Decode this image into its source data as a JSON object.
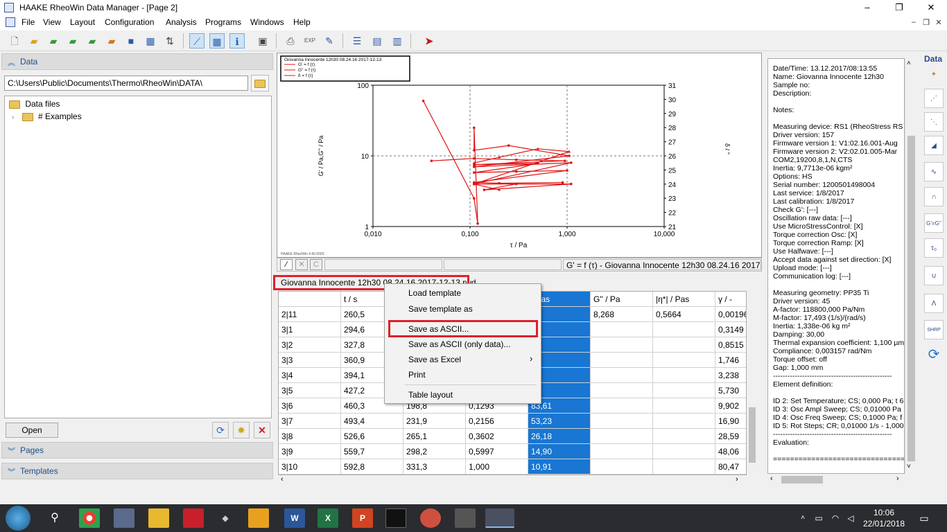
{
  "window": {
    "title": "HAAKE RheoWin Data Manager - [Page 2]",
    "controls": [
      "–",
      "❐",
      "✕"
    ],
    "mdi_controls": [
      "–",
      "❐",
      "✕"
    ]
  },
  "menu": [
    "File",
    "View",
    "Layout",
    "Configuration",
    "Analysis",
    "Programs",
    "Windows",
    "Help"
  ],
  "left": {
    "data_header": "Data",
    "path": "C:\\Users\\Public\\Documents\\Thermo\\RheoWin\\DATA\\",
    "tree": {
      "root": "Data files",
      "child": "# Examples"
    },
    "open_label": "Open",
    "pages_header": "Pages",
    "templates_header": "Templates"
  },
  "plot": {
    "legend": [
      "Giovanna Innocente 12h30 08.24.16 2017-12-13",
      "G' = f (τ)",
      "G'' = f (τ)",
      "δ = f (τ)"
    ],
    "xlabel": "τ / Pa",
    "ylabel": "G' / Pa,G'' / Pa",
    "y2label": "δ / °",
    "y_ticks": [
      "100",
      "10",
      "1"
    ],
    "x_ticks": [
      "0,010",
      "0,100",
      "1,000",
      "10,000"
    ],
    "y2_ticks": [
      "31",
      "30",
      "29",
      "28",
      "27",
      "26",
      "25",
      "24",
      "23",
      "22",
      "21"
    ],
    "footer": "HAAKE RheoWin 4.60.0003",
    "status": "G' = f (τ) - Giovanna Innocente 12h30  08.24.16 2017",
    "status_buttons": [
      "∕",
      "✕",
      "C"
    ]
  },
  "chart_data": {
    "type": "scatter",
    "title": "",
    "xlabel": "τ / Pa",
    "ylabel": "G' / Pa,G'' / Pa",
    "y2label": "δ / °",
    "xscale": "log",
    "yscale": "log",
    "xlim": [
      0.01,
      10
    ],
    "ylim": [
      1,
      100
    ],
    "y2lim": [
      21,
      31
    ],
    "legend_placement": "top-left",
    "series": [
      {
        "name": "G' = f (τ)",
        "axis": "y",
        "points": [
          [
            0.033,
            60
          ],
          [
            0.11,
            2.5
          ],
          [
            0.12,
            1.1
          ],
          [
            0.11,
            25
          ],
          [
            0.11,
            12
          ],
          [
            0.25,
            14
          ],
          [
            1.05,
            10
          ],
          [
            0.11,
            7
          ],
          [
            1.1,
            8
          ],
          [
            0.11,
            4
          ],
          [
            1.1,
            4
          ],
          [
            0.14,
            3.3
          ],
          [
            0.3,
            4
          ]
        ]
      },
      {
        "name": "G'' = f (τ)",
        "axis": "y",
        "points": [
          [
            0.04,
            8.5
          ],
          [
            0.11,
            9.2
          ],
          [
            0.3,
            8.8
          ],
          [
            0.95,
            8.5
          ],
          [
            0.11,
            7.5
          ],
          [
            0.5,
            7.8
          ],
          [
            0.11,
            5.8
          ],
          [
            0.3,
            6
          ],
          [
            1.0,
            6.2
          ],
          [
            0.11,
            4.2
          ],
          [
            0.2,
            4.1
          ],
          [
            0.9,
            4.2
          ]
        ]
      },
      {
        "name": "δ = f (τ)",
        "axis": "y2",
        "points": [
          [
            0.11,
            25.5
          ],
          [
            0.2,
            25.9
          ],
          [
            0.5,
            26.5
          ],
          [
            1.05,
            26.3
          ],
          [
            0.11,
            24.0
          ],
          [
            0.2,
            23.6
          ]
        ]
      }
    ]
  },
  "table": {
    "doc_label": "Giovanna Innocente 12h30  08.24.16 2017-12-13.rwd",
    "columns": [
      "",
      "t / s",
      "",
      "",
      "| Pas",
      "G'' / Pa",
      "|η*| / Pas",
      "γ / -"
    ],
    "rows": [
      [
        "2|11",
        "260,5",
        "",
        "",
        "",
        "8,268",
        "0,5664",
        "0,00196"
      ],
      [
        "3|1",
        "294,6",
        "",
        "",
        "57",
        "",
        "",
        "0,3149"
      ],
      [
        "3|2",
        "327,8",
        "",
        "",
        "20",
        "",
        "",
        "0,8515"
      ],
      [
        "3|3",
        "360,9",
        "",
        "",
        ",9",
        "",
        "",
        "1,746"
      ],
      [
        "3|4",
        "394,1",
        "",
        "",
        ",8",
        "",
        "",
        "3,238"
      ],
      [
        "3|5",
        "427,2",
        "",
        "",
        ",7",
        "",
        "",
        "5,730"
      ],
      [
        "3|6",
        "460,3",
        "198,8",
        "0,1293",
        "83,61",
        "",
        "",
        "9,902"
      ],
      [
        "3|7",
        "493,4",
        "231,9",
        "0,2156",
        "53,23",
        "",
        "",
        "16,90"
      ],
      [
        "3|8",
        "526,6",
        "265,1",
        "0,3602",
        "26,18",
        "",
        "",
        "28,59"
      ],
      [
        "3|9",
        "559,7",
        "298,2",
        "0,5997",
        "14,90",
        "",
        "",
        "48,06"
      ],
      [
        "3|10",
        "592,8",
        "331,3",
        "1,000",
        "10,91",
        "",
        "",
        "80,47"
      ]
    ]
  },
  "context_menu": {
    "items": [
      "Load template",
      "Save template as",
      "Save as ASCII...",
      "Save as ASCII (only data)...",
      "Save as Excel",
      "Print",
      "Table layout"
    ],
    "submenu_arrow": "›"
  },
  "info": {
    "lines": [
      "Date/Time: 13.12.2017/08:13:55",
      "Name: Giovanna Innocente 12h30",
      "Sample no:",
      "Description:",
      "",
      "Notes:",
      "",
      "Measuring device: RS1 (RheoStress RS",
      "Driver version: 157",
      "Firmware version 1: V1:02.16.001-Aug",
      "Firmware version 2: V2:02.01.005-Mar",
      "COM2,19200,8,1,N,CTS",
      "Inertia: 9,7713e-06 kgm²",
      "Options: HS",
      "Serial number: 1200501498004",
      "Last service: 1/8/2017",
      "Last calibration: 1/8/2017",
      "Check G': [---]",
      "Oscillation raw data: [---]",
      "Use MicroStressControl: [X]",
      "Torque correction Osc: [X]",
      "Torque correction Ramp: [X]",
      "Use Halfwave: [---]",
      "Accept data against set direction: [X]",
      "Upload mode: [---]",
      "Communication log: [---]",
      "",
      "Measuring geometry: PP35 Ti",
      "Driver version: 45",
      "A-factor: 118800,000 Pa/Nm",
      "M-factor: 17,493 (1/s)/(rad/s)",
      "Inertia: 1,338e-06 kg m²",
      "Damping: 30,00",
      "Thermal expansion coefficient: 1,100 µm",
      "Compliance: 0,003157 rad/Nm",
      "Torque offset: off",
      "Gap: 1,000 mm",
      "-------------------------------------------------",
      "Element definition:",
      "",
      "ID 2: Set Temperature; CS; 0,000 Pa; t 6",
      "ID 3: Osc Ampl Sweep; CS; 0,01000 Pa",
      "ID 4: Osc Freq Sweep; CS; 0,1000 Pa; f",
      "ID 5: Rot Steps; CR; 0,01000 1/s - 1,000",
      "-------------------------------------------------",
      "Evaluation:",
      "",
      "=================================="
    ]
  },
  "vtoolbar": {
    "top_label": "Data",
    "items": [
      "✦",
      "⋰",
      "⋱",
      "◢",
      "∿",
      "∩",
      "G'=G''",
      "τ₀",
      "∪",
      "Λ",
      "SHRP",
      "⟳"
    ]
  },
  "taskbar": {
    "time": "10:06",
    "date": "22/01/2018",
    "apps": [
      "W",
      "X",
      "P"
    ]
  }
}
